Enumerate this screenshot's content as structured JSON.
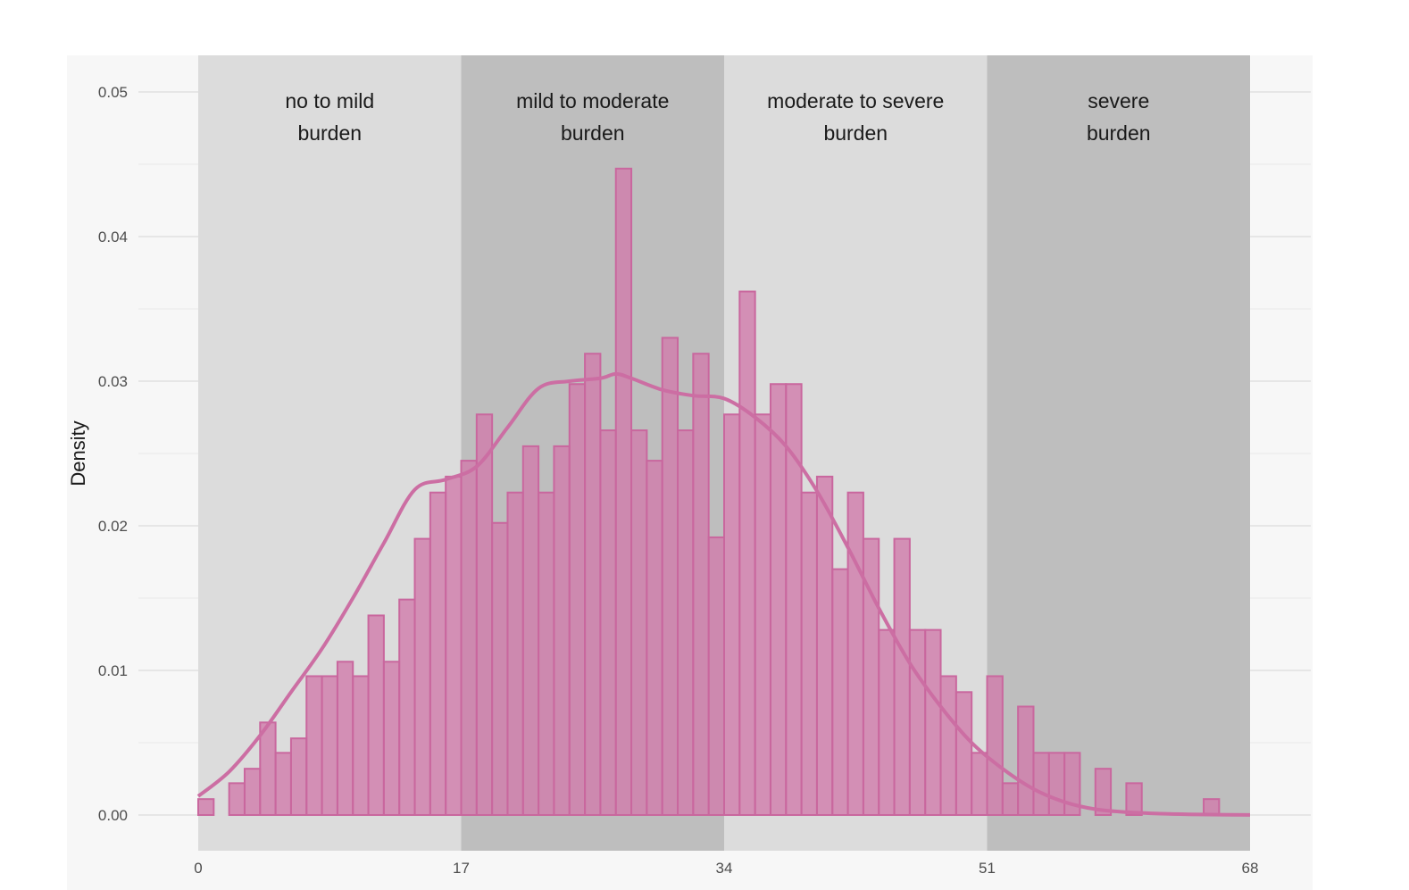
{
  "chart_data": {
    "type": "bar",
    "subtype": "histogram-with-density",
    "title": "",
    "xlabel": "",
    "ylabel": "Density",
    "xlim": [
      0,
      68
    ],
    "ylim": [
      0,
      0.05
    ],
    "x_ticks": [
      "0",
      "17",
      "34",
      "51",
      "68"
    ],
    "y_ticks": [
      "0.00",
      "0.01",
      "0.02",
      "0.03",
      "0.04",
      "0.05"
    ],
    "bin_width": 1,
    "bins_start": [
      0,
      1,
      2,
      3,
      4,
      5,
      6,
      7,
      8,
      9,
      10,
      11,
      12,
      13,
      14,
      15,
      16,
      17,
      18,
      19,
      20,
      21,
      22,
      23,
      24,
      25,
      26,
      27,
      28,
      29,
      30,
      31,
      32,
      33,
      34,
      35,
      36,
      37,
      38,
      39,
      40,
      41,
      42,
      43,
      44,
      45,
      46,
      47,
      48,
      49,
      50,
      51,
      52,
      53,
      54,
      55,
      56,
      57,
      58,
      59,
      60,
      61,
      62,
      63,
      64,
      65,
      66,
      67
    ],
    "density": [
      0.0011,
      0,
      0.0022,
      0.0032,
      0.0064,
      0.0043,
      0.0053,
      0.0096,
      0.0096,
      0.0106,
      0.0096,
      0.0138,
      0.0106,
      0.0149,
      0.0191,
      0.0223,
      0.0234,
      0.0245,
      0.0277,
      0.0202,
      0.0223,
      0.0255,
      0.0223,
      0.0255,
      0.0298,
      0.0319,
      0.0266,
      0.0447,
      0.0266,
      0.0245,
      0.033,
      0.0266,
      0.0319,
      0.0192,
      0.0277,
      0.0362,
      0.0277,
      0.0298,
      0.0298,
      0.0223,
      0.0234,
      0.017,
      0.0223,
      0.0191,
      0.0128,
      0.0191,
      0.0128,
      0.0128,
      0.0096,
      0.0085,
      0.0043,
      0.0096,
      0.0022,
      0.0075,
      0.0043,
      0.0043,
      0.0043,
      0,
      0.0032,
      0,
      0.0022,
      0,
      0,
      0,
      0,
      0.0011,
      0,
      0
    ],
    "density_curve": {
      "x": [
        0,
        2,
        4,
        6,
        8,
        10,
        12,
        14,
        16,
        18,
        20,
        22,
        24,
        26,
        27,
        28,
        30,
        32,
        34,
        36,
        38,
        40,
        42,
        44,
        46,
        48,
        50,
        52,
        54,
        56,
        58,
        60,
        62,
        64,
        66,
        68
      ],
      "y": [
        0.0013,
        0.003,
        0.0055,
        0.0085,
        0.0115,
        0.015,
        0.0188,
        0.0225,
        0.0232,
        0.0241,
        0.0268,
        0.0295,
        0.03,
        0.0302,
        0.0305,
        0.0302,
        0.0294,
        0.029,
        0.0288,
        0.0275,
        0.0255,
        0.0224,
        0.0185,
        0.0143,
        0.0105,
        0.0075,
        0.005,
        0.0032,
        0.0018,
        0.0009,
        0.0004,
        0.0002,
        0.0001,
        5e-05,
        2e-05,
        1e-05
      ]
    },
    "bands": [
      {
        "label": [
          "no to mild",
          "burden"
        ],
        "x_from": 0,
        "x_to": 17,
        "color": "#dcdcdc"
      },
      {
        "label": [
          "mild to moderate",
          "burden"
        ],
        "x_from": 17,
        "x_to": 34,
        "color": "#bebebe"
      },
      {
        "label": [
          "moderate to severe",
          "burden"
        ],
        "x_from": 34,
        "x_to": 51,
        "color": "#dcdcdc"
      },
      {
        "label": [
          "severe",
          "burden"
        ],
        "x_from": 51,
        "x_to": 68,
        "color": "#bebebe"
      }
    ],
    "colors": {
      "bar_fill": "#d17aab",
      "bar_stroke": "#c9679e",
      "curve": "#cc6ea3",
      "panel": "#f7f7f7",
      "gridline": "#e6e6e6"
    }
  }
}
